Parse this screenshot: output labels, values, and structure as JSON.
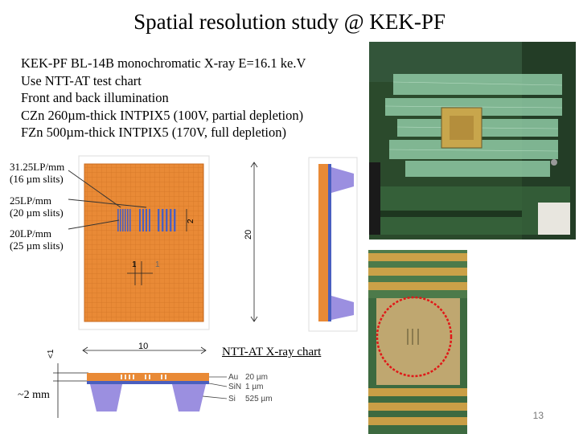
{
  "slide": {
    "title": "Spatial resolution study @ KEK-PF",
    "bullets": [
      "KEK-PF BL-14B monochromatic X-ray E=16.1 ke.V",
      "Use NTT-AT test chart",
      "Front and back illumination",
      "CZn 260µm-thick INTPIX5 (100V, partial depletion)",
      "FZn 500µm-thick INTPIX5 (170V, full depletion)"
    ],
    "page_number": "13"
  },
  "chart_diagram": {
    "labels": [
      {
        "line1": "31.25LP/mm",
        "line2": "(16 µm slits)"
      },
      {
        "line1": "25LP/mm",
        "line2": "(20 µm slits)"
      },
      {
        "line1": "20LP/mm",
        "line2": "(25 µm slits)"
      }
    ],
    "dim_1": "1",
    "dim_1b": "1",
    "dim_2": "2",
    "dim_20": "20",
    "dim_10": "10",
    "dim_lt1": "<1",
    "dim_2mm": "~2 mm",
    "caption": "NTT-AT X-ray chart",
    "layers": [
      {
        "name": "Au",
        "thickness": "20 µm"
      },
      {
        "name": "SiN",
        "thickness": "1 µm"
      },
      {
        "name": "Si",
        "thickness": "525 µm"
      }
    ]
  },
  "colors": {
    "chart_orange": "#e98a36",
    "slit_blue": "#4a5fbf",
    "si_purple": "#9b8fe0",
    "red_ellipse": "#e01818"
  }
}
